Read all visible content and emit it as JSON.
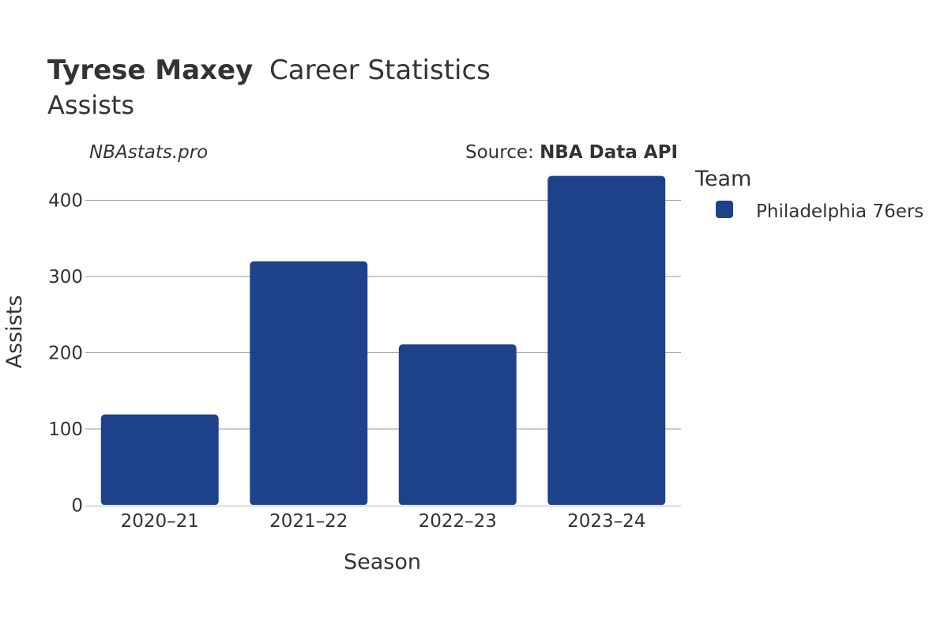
{
  "header": {
    "player_name": "Tyrese Maxey",
    "title_rest": "Career Statistics",
    "subtitle": "Assists",
    "watermark": "NBAstats.pro",
    "source_prefix": "Source: ",
    "source_name": "NBA Data API"
  },
  "legend": {
    "title": "Team",
    "items": [
      {
        "label": "Philadelphia 76ers",
        "color": "#1d428a"
      }
    ]
  },
  "chart_data": {
    "type": "bar",
    "categories": [
      "2020–21",
      "2021–22",
      "2022–23",
      "2023–24"
    ],
    "series": [
      {
        "name": "Philadelphia 76ers",
        "values": [
          119,
          320,
          211,
          432
        ],
        "color": "#1d428a"
      }
    ],
    "xlabel": "Season",
    "ylabel": "Assists",
    "ylim": [
      0,
      450
    ],
    "yticks": [
      0,
      100,
      200,
      300,
      400
    ],
    "grid": true,
    "legend_position": "right"
  }
}
